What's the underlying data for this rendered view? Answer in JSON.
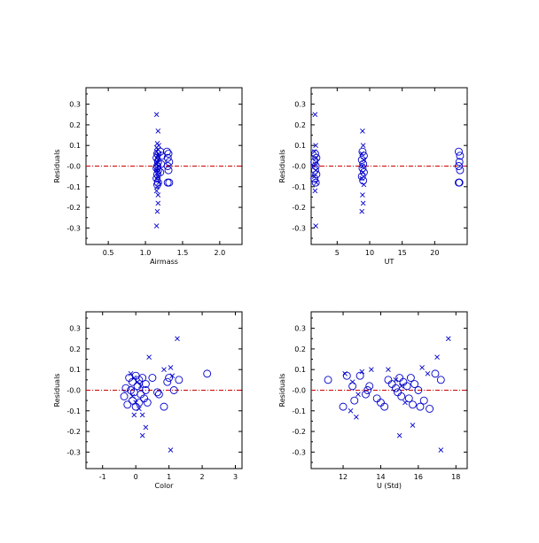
{
  "colors": {
    "axis": "#000000",
    "marker": "#0000cc",
    "zero_line": "#cc0000"
  },
  "chart_data": [
    {
      "type": "scatter",
      "title": "",
      "xlabel": "Airmass",
      "ylabel": "Residuals",
      "xlim": [
        0.2,
        2.3
      ],
      "ylim": [
        -0.38,
        0.38
      ],
      "xticks": [
        0.5,
        1.0,
        1.5,
        2.0
      ],
      "xtick_labels": [
        "0.5",
        "1.0",
        "1.5",
        "2.0"
      ],
      "yticks": [
        -0.3,
        -0.2,
        -0.1,
        0.0,
        0.1,
        0.2,
        0.3
      ],
      "ytick_labels": [
        "-0.3",
        "-0.2",
        "-0.1",
        "-0.0",
        "0.1",
        "0.2",
        "0.3"
      ],
      "zero_line": true,
      "series": [
        {
          "marker": "x",
          "points": [
            [
              1.15,
              0.25
            ],
            [
              1.17,
              0.17
            ],
            [
              1.16,
              0.11
            ],
            [
              1.18,
              0.1
            ],
            [
              1.15,
              0.09
            ],
            [
              1.17,
              0.08
            ],
            [
              1.15,
              0.07
            ],
            [
              1.18,
              0.06
            ],
            [
              1.16,
              0.05
            ],
            [
              1.15,
              0.04
            ],
            [
              1.17,
              0.03
            ],
            [
              1.16,
              0.02
            ],
            [
              1.15,
              0.01
            ],
            [
              1.18,
              0.0
            ],
            [
              1.16,
              -0.01
            ],
            [
              1.15,
              -0.02
            ],
            [
              1.17,
              -0.03
            ],
            [
              1.16,
              -0.05
            ],
            [
              1.15,
              -0.06
            ],
            [
              1.18,
              -0.08
            ],
            [
              1.16,
              -0.1
            ],
            [
              1.15,
              -0.12
            ],
            [
              1.17,
              -0.14
            ],
            [
              1.17,
              -0.18
            ],
            [
              1.16,
              -0.22
            ],
            [
              1.15,
              -0.29
            ]
          ]
        },
        {
          "marker": "o",
          "points": [
            [
              1.16,
              0.06
            ],
            [
              1.15,
              0.04
            ],
            [
              1.17,
              0.02
            ],
            [
              1.16,
              0.0
            ],
            [
              1.15,
              -0.01
            ],
            [
              1.17,
              -0.02
            ],
            [
              1.16,
              -0.04
            ],
            [
              1.15,
              -0.06
            ],
            [
              1.17,
              -0.08
            ],
            [
              1.16,
              -0.09
            ],
            [
              1.2,
              0.07
            ],
            [
              1.22,
              0.05
            ],
            [
              1.21,
              0.01
            ],
            [
              1.2,
              -0.03
            ],
            [
              1.29,
              0.07
            ],
            [
              1.31,
              0.06
            ],
            [
              1.3,
              0.04
            ],
            [
              1.32,
              0.02
            ],
            [
              1.3,
              0.0
            ],
            [
              1.31,
              -0.02
            ],
            [
              1.3,
              -0.08
            ],
            [
              1.32,
              -0.08
            ]
          ]
        }
      ]
    },
    {
      "type": "scatter",
      "title": "",
      "xlabel": "UT",
      "ylabel": "Residuals",
      "xlim": [
        1,
        25
      ],
      "ylim": [
        -0.38,
        0.38
      ],
      "xticks": [
        5,
        10,
        15,
        20
      ],
      "xtick_labels": [
        "5",
        "10",
        "15",
        "20"
      ],
      "yticks": [
        -0.3,
        -0.2,
        -0.1,
        0.0,
        0.1,
        0.2,
        0.3
      ],
      "ytick_labels": [
        "-0.3",
        "-0.2",
        "-0.1",
        "-0.0",
        "0.1",
        "0.2",
        "0.3"
      ],
      "zero_line": true,
      "series": [
        {
          "marker": "x",
          "points": [
            [
              1.6,
              0.25
            ],
            [
              1.7,
              0.1
            ],
            [
              1.5,
              0.07
            ],
            [
              1.8,
              0.04
            ],
            [
              1.6,
              0.01
            ],
            [
              1.7,
              -0.02
            ],
            [
              1.5,
              -0.05
            ],
            [
              1.8,
              -0.08
            ],
            [
              1.6,
              -0.12
            ],
            [
              1.7,
              -0.29
            ],
            [
              8.9,
              0.17
            ],
            [
              9.0,
              0.1
            ],
            [
              8.8,
              0.06
            ],
            [
              9.1,
              0.03
            ],
            [
              8.9,
              0.0
            ],
            [
              9.0,
              -0.03
            ],
            [
              8.8,
              -0.06
            ],
            [
              9.1,
              -0.09
            ],
            [
              8.9,
              -0.14
            ],
            [
              9.0,
              -0.18
            ],
            [
              8.8,
              -0.22
            ]
          ]
        },
        {
          "marker": "o",
          "points": [
            [
              1.6,
              0.06
            ],
            [
              1.8,
              0.04
            ],
            [
              1.5,
              0.02
            ],
            [
              1.7,
              0.0
            ],
            [
              1.6,
              -0.02
            ],
            [
              1.8,
              -0.04
            ],
            [
              1.5,
              -0.06
            ],
            [
              1.7,
              -0.08
            ],
            [
              8.9,
              0.07
            ],
            [
              9.1,
              0.05
            ],
            [
              8.8,
              0.03
            ],
            [
              9.0,
              0.01
            ],
            [
              8.9,
              -0.01
            ],
            [
              9.1,
              -0.03
            ],
            [
              8.8,
              -0.05
            ],
            [
              9.0,
              -0.07
            ],
            [
              23.7,
              0.07
            ],
            [
              23.9,
              0.05
            ],
            [
              23.8,
              0.02
            ],
            [
              23.7,
              0.0
            ],
            [
              23.9,
              -0.02
            ],
            [
              23.8,
              -0.08
            ],
            [
              23.7,
              -0.08
            ]
          ]
        }
      ]
    },
    {
      "type": "scatter",
      "title": "",
      "xlabel": "Color",
      "ylabel": "Residuals",
      "xlim": [
        -1.5,
        3.2
      ],
      "ylim": [
        -0.38,
        0.38
      ],
      "xticks": [
        -1,
        0,
        1,
        2,
        3
      ],
      "xtick_labels": [
        "-1",
        "0",
        "1",
        "2",
        "3"
      ],
      "yticks": [
        -0.3,
        -0.2,
        -0.1,
        0.0,
        0.1,
        0.2,
        0.3
      ],
      "ytick_labels": [
        "-0.3",
        "-0.2",
        "-0.1",
        "-0.0",
        "0.1",
        "0.2",
        "0.3"
      ],
      "zero_line": true,
      "series": [
        {
          "marker": "x",
          "points": [
            [
              -0.15,
              0.08
            ],
            [
              -0.05,
              0.06
            ],
            [
              0.05,
              0.04
            ],
            [
              0.15,
              0.02
            ],
            [
              -0.1,
              -0.03
            ],
            [
              0.0,
              -0.06
            ],
            [
              0.1,
              -0.09
            ],
            [
              0.2,
              -0.12
            ],
            [
              0.3,
              -0.18
            ],
            [
              0.2,
              -0.22
            ],
            [
              0.4,
              0.16
            ],
            [
              1.25,
              0.25
            ],
            [
              0.85,
              0.1
            ],
            [
              1.05,
              0.11
            ],
            [
              1.1,
              0.07
            ],
            [
              1.05,
              -0.29
            ],
            [
              -0.05,
              -0.12
            ]
          ]
        },
        {
          "marker": "o",
          "points": [
            [
              -0.2,
              0.06
            ],
            [
              -0.1,
              0.04
            ],
            [
              0.0,
              0.07
            ],
            [
              0.1,
              0.05
            ],
            [
              0.2,
              0.06
            ],
            [
              0.3,
              0.03
            ],
            [
              -0.3,
              0.01
            ],
            [
              -0.15,
              0.0
            ],
            [
              -0.05,
              -0.01
            ],
            [
              0.05,
              0.02
            ],
            [
              0.15,
              -0.02
            ],
            [
              0.25,
              -0.04
            ],
            [
              0.35,
              -0.06
            ],
            [
              -0.25,
              -0.07
            ],
            [
              -0.35,
              -0.03
            ],
            [
              0.0,
              -0.08
            ],
            [
              0.1,
              -0.06
            ],
            [
              0.5,
              0.06
            ],
            [
              0.7,
              -0.02
            ],
            [
              0.65,
              -0.01
            ],
            [
              0.85,
              -0.08
            ],
            [
              0.95,
              0.04
            ],
            [
              1.0,
              0.06
            ],
            [
              1.15,
              0.0
            ],
            [
              1.3,
              0.05
            ],
            [
              2.15,
              0.08
            ],
            [
              -0.1,
              -0.05
            ],
            [
              0.3,
              0.0
            ]
          ]
        }
      ]
    },
    {
      "type": "scatter",
      "title": "",
      "xlabel": "U (Std)",
      "ylabel": "Residuals",
      "xlim": [
        10.3,
        18.6
      ],
      "ylim": [
        -0.38,
        0.38
      ],
      "xticks": [
        12,
        14,
        16,
        18
      ],
      "xtick_labels": [
        "12",
        "14",
        "16",
        "18"
      ],
      "yticks": [
        -0.3,
        -0.2,
        -0.1,
        0.0,
        0.1,
        0.2,
        0.3
      ],
      "ytick_labels": [
        "-0.3",
        "-0.2",
        "-0.1",
        "-0.0",
        "0.1",
        "0.2",
        "0.3"
      ],
      "zero_line": true,
      "series": [
        {
          "marker": "x",
          "points": [
            [
              12.1,
              0.08
            ],
            [
              12.5,
              0.04
            ],
            [
              12.8,
              -0.02
            ],
            [
              12.4,
              -0.1
            ],
            [
              12.7,
              -0.13
            ],
            [
              13.0,
              0.09
            ],
            [
              13.5,
              0.1
            ],
            [
              14.4,
              0.1
            ],
            [
              14.8,
              0.05
            ],
            [
              15.1,
              0.02
            ],
            [
              15.3,
              -0.06
            ],
            [
              15.0,
              -0.22
            ],
            [
              15.7,
              -0.17
            ],
            [
              16.2,
              0.11
            ],
            [
              17.0,
              0.16
            ],
            [
              17.6,
              0.25
            ],
            [
              17.2,
              -0.29
            ],
            [
              16.5,
              0.08
            ]
          ]
        },
        {
          "marker": "o",
          "points": [
            [
              11.2,
              0.05
            ],
            [
              12.0,
              -0.08
            ],
            [
              12.2,
              0.07
            ],
            [
              12.5,
              0.02
            ],
            [
              12.6,
              -0.05
            ],
            [
              12.9,
              0.07
            ],
            [
              13.2,
              -0.02
            ],
            [
              13.3,
              0.0
            ],
            [
              13.4,
              0.02
            ],
            [
              13.8,
              -0.04
            ],
            [
              14.0,
              -0.06
            ],
            [
              14.2,
              -0.08
            ],
            [
              14.4,
              0.05
            ],
            [
              14.6,
              0.03
            ],
            [
              14.8,
              0.01
            ],
            [
              14.9,
              -0.01
            ],
            [
              15.0,
              0.06
            ],
            [
              15.1,
              -0.03
            ],
            [
              15.2,
              0.04
            ],
            [
              15.4,
              0.02
            ],
            [
              15.5,
              -0.04
            ],
            [
              15.7,
              -0.07
            ],
            [
              15.8,
              0.03
            ],
            [
              16.0,
              0.0
            ],
            [
              16.1,
              -0.08
            ],
            [
              16.3,
              -0.05
            ],
            [
              16.6,
              -0.09
            ],
            [
              16.9,
              0.08
            ],
            [
              17.2,
              0.05
            ],
            [
              15.6,
              0.06
            ]
          ]
        }
      ]
    }
  ]
}
